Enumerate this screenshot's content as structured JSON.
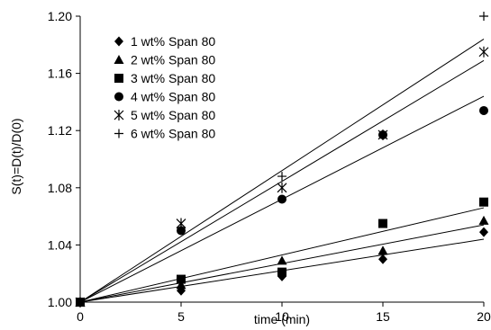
{
  "chart_data": {
    "type": "scatter",
    "xlabel": "time (min)",
    "ylabel": "S(t)=D(t)/D(0)",
    "xlim": [
      0,
      20
    ],
    "ylim": [
      1.0,
      1.2
    ],
    "xticks": [
      "0",
      "5",
      "10",
      "15",
      "20"
    ],
    "yticks": [
      "1.00",
      "1.04",
      "1.08",
      "1.12",
      "1.16",
      "1.20"
    ],
    "grid": false,
    "legend_position": "top-left",
    "x": [
      0,
      5,
      10,
      15,
      20
    ],
    "series": [
      {
        "name": "1 wt% Span 80",
        "marker": "diamond",
        "values": [
          1.0,
          1.008,
          1.018,
          1.03,
          1.049
        ],
        "fit_end": 1.044
      },
      {
        "name": "2 wt% Span 80",
        "marker": "triangle",
        "values": [
          1.0,
          1.012,
          1.029,
          1.036,
          1.057
        ],
        "fit_end": 1.054
      },
      {
        "name": "3 wt% Span 80",
        "marker": "square",
        "values": [
          1.0,
          1.016,
          1.021,
          1.055,
          1.07
        ],
        "fit_end": 1.066
      },
      {
        "name": "4 wt% Span 80",
        "marker": "circle",
        "values": [
          1.0,
          1.05,
          1.072,
          1.117,
          1.134
        ],
        "fit_end": 1.144
      },
      {
        "name": "5 wt% Span 80",
        "marker": "asterisk",
        "values": [
          1.0,
          1.055,
          1.08,
          1.117,
          1.175
        ],
        "fit_end": 1.169
      },
      {
        "name": "6 wt% Span 80",
        "marker": "plus",
        "values": [
          1.0,
          1.052,
          1.088,
          1.117,
          1.2
        ],
        "fit_end": 1.184
      }
    ]
  }
}
